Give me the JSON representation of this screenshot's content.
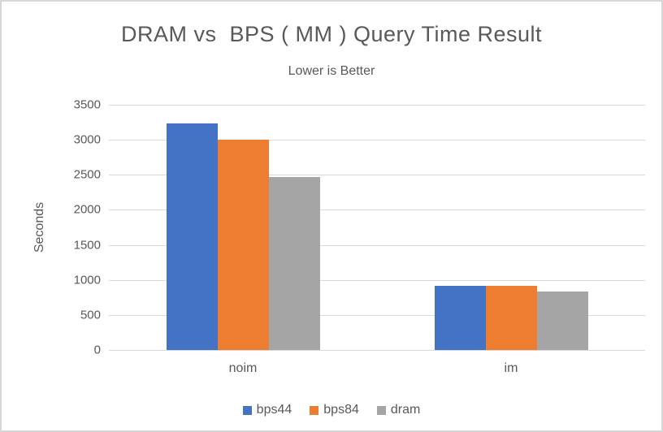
{
  "chart_data": {
    "type": "bar",
    "title": "DRAM vs  BPS ( MM ) Query Time Result",
    "subtitle": "Lower is Better",
    "ylabel": "Seconds",
    "xlabel": "",
    "categories": [
      "noim",
      "im"
    ],
    "series": [
      {
        "name": "bps44",
        "color": "#4472C4",
        "values": [
          3230,
          920
        ]
      },
      {
        "name": "bps84",
        "color": "#ED7D31",
        "values": [
          3000,
          910
        ]
      },
      {
        "name": "dram",
        "color": "#A5A5A5",
        "values": [
          2470,
          840
        ]
      }
    ],
    "ylim": [
      0,
      3500
    ],
    "yticks": [
      0,
      500,
      1000,
      1500,
      2000,
      2500,
      3000,
      3500
    ],
    "grid": "horizontal",
    "gridline_color": "#D9D9D9",
    "legend_position": "bottom",
    "text_color": "#595959"
  }
}
